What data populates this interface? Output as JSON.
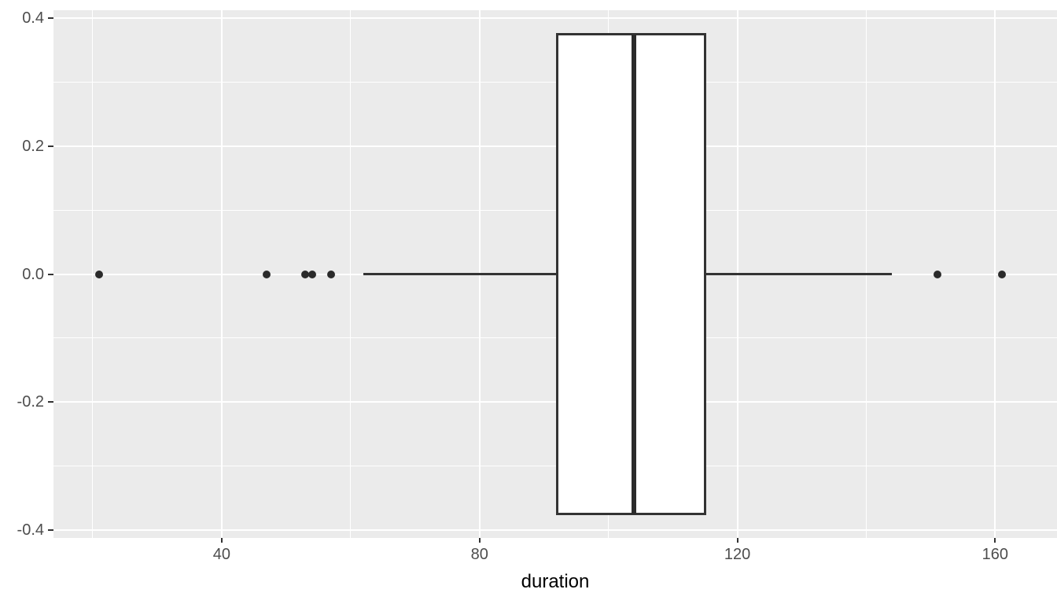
{
  "chart_data": {
    "type": "boxplot",
    "orientation": "horizontal",
    "xlabel": "duration",
    "ylabel": "",
    "xlim": [
      13.9,
      169.6
    ],
    "ylim": [
      -0.4125,
      0.4125
    ],
    "x_ticks": [
      40,
      80,
      120,
      160
    ],
    "x_tick_labels": [
      "40",
      "80",
      "120",
      "160"
    ],
    "x_minor_ticks": [
      20,
      60,
      100,
      140
    ],
    "y_ticks": [
      0.4,
      0.2,
      0,
      -0.2,
      -0.4
    ],
    "y_tick_labels": [
      "0.4",
      "0.2",
      "0.0",
      "-0.2",
      "-0.4"
    ],
    "y_minor_ticks": [
      0.3,
      0.1,
      -0.1,
      -0.3
    ],
    "grid": "major and minor gridlines, white on grey panel",
    "legend": false,
    "series": [
      {
        "name": "duration",
        "center_y": 0,
        "box_half_width": 0.375,
        "whisker_low": 62,
        "q1": 92,
        "median": 104,
        "q3": 115,
        "whisker_high": 144,
        "outliers": [
          21,
          47,
          53,
          54,
          57,
          151,
          161
        ]
      }
    ]
  },
  "colors": {
    "figure_background": "#FFFFFF",
    "panel_background": "#EBEBEB",
    "grid": "#FFFFFF",
    "box_fill": "#FFFFFF",
    "box_stroke": "#333333",
    "median": "#2B2B2B",
    "whisker": "#333333",
    "outlier_point": "#2B2B2B",
    "tick_mark": "#333333",
    "axis_text": "#4D4D4D",
    "axis_title": "#000000"
  }
}
